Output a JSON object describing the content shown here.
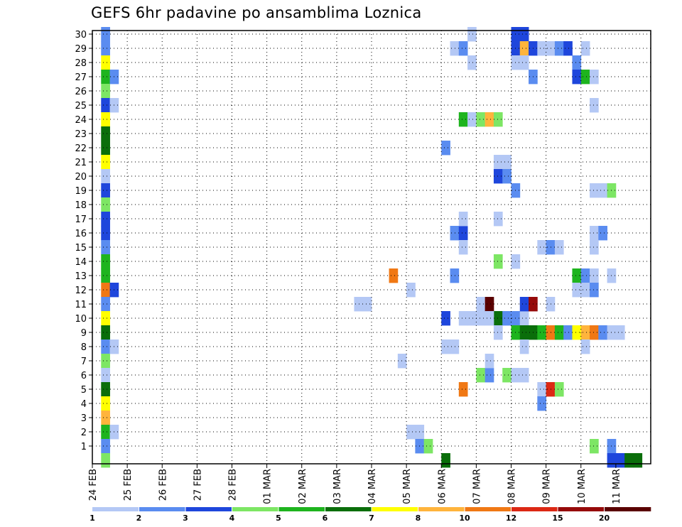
{
  "chart_data": {
    "type": "heatmap",
    "title": "GEFS 6hr padavine po ansamblima Loznica",
    "x_tick_labels": [
      "24 FEB",
      "25 FEB",
      "26 FEB",
      "27 FEB",
      "28 FEB",
      "01 MAR",
      "02 MAR",
      "03 MAR",
      "04 MAR",
      "05 MAR",
      "06 MAR",
      "07 MAR",
      "08 MAR",
      "09 MAR",
      "10 MAR",
      "11 MAR"
    ],
    "y_tick_labels": [
      "1",
      "2",
      "3",
      "4",
      "5",
      "6",
      "7",
      "8",
      "9",
      "10",
      "11",
      "12",
      "13",
      "14",
      "15",
      "16",
      "17",
      "18",
      "19",
      "20",
      "21",
      "22",
      "23",
      "24",
      "25",
      "26",
      "27",
      "28",
      "29",
      "30"
    ],
    "x_range_steps": [
      0,
      64
    ],
    "y_range": [
      0,
      30
    ],
    "steps_per_day": 4,
    "grid": "dotted",
    "colorbar": {
      "labels": [
        "1",
        "2",
        "3",
        "4",
        "5",
        "6",
        "7",
        "8",
        "10",
        "12",
        "15",
        "20"
      ],
      "colors": [
        "#b4c8f5",
        "#5a8cf0",
        "#1e46dc",
        "#7de664",
        "#1eb41e",
        "#0a6e0a",
        "#ffff00",
        "#ffb43c",
        "#f07814",
        "#dc2814",
        "#960a0a",
        "#5a0000"
      ]
    },
    "cells": [
      [
        1,
        30,
        0,
        1
      ],
      [
        1,
        29,
        1,
        1
      ],
      [
        1,
        28,
        0,
        6
      ],
      [
        1,
        27,
        0,
        4
      ],
      [
        1,
        26,
        0,
        3
      ],
      [
        1,
        25,
        0,
        2
      ],
      [
        1,
        24,
        0,
        6
      ],
      [
        1,
        23,
        0,
        5
      ],
      [
        1,
        22,
        0,
        5
      ],
      [
        1,
        21,
        0,
        6
      ],
      [
        1,
        20,
        0,
        0
      ],
      [
        1,
        19,
        0,
        2
      ],
      [
        1,
        18,
        0,
        3
      ],
      [
        1,
        17,
        0,
        2
      ],
      [
        1,
        16,
        0,
        2
      ],
      [
        1,
        15,
        0,
        1
      ],
      [
        1,
        14,
        0,
        4
      ],
      [
        1,
        13,
        0,
        4
      ],
      [
        1,
        12,
        0,
        8
      ],
      [
        1,
        11,
        0,
        1
      ],
      [
        1,
        10,
        0,
        6
      ],
      [
        1,
        9,
        0,
        5
      ],
      [
        1,
        8,
        0,
        1
      ],
      [
        1,
        7,
        0,
        3
      ],
      [
        1,
        6,
        0,
        0
      ],
      [
        1,
        5,
        0,
        5
      ],
      [
        1,
        4,
        0,
        6
      ],
      [
        1,
        3,
        0,
        7
      ],
      [
        1,
        2,
        0,
        4
      ],
      [
        1,
        1,
        0,
        1
      ],
      [
        1,
        0,
        0,
        3
      ],
      [
        2,
        27,
        0,
        1
      ],
      [
        2,
        25,
        0,
        0
      ],
      [
        2,
        12,
        0,
        2
      ],
      [
        2,
        8,
        0,
        0
      ],
      [
        2,
        2,
        0,
        0
      ],
      [
        30,
        11,
        0,
        0
      ],
      [
        31,
        11,
        0,
        0
      ],
      [
        34,
        13,
        0,
        8
      ],
      [
        36,
        12,
        0,
        0
      ],
      [
        35,
        7,
        0,
        0
      ],
      [
        36,
        2,
        0,
        0
      ],
      [
        37,
        2,
        0,
        0
      ],
      [
        37,
        1,
        0,
        1
      ],
      [
        38,
        1,
        0,
        3
      ],
      [
        40,
        0,
        0,
        5
      ],
      [
        40,
        22,
        0,
        1
      ],
      [
        40,
        10,
        0,
        2
      ],
      [
        40,
        8,
        0,
        0
      ],
      [
        41,
        8,
        0,
        0
      ],
      [
        41,
        29,
        0,
        0
      ],
      [
        42,
        29,
        0,
        1
      ],
      [
        42,
        24,
        0,
        4
      ],
      [
        43,
        24,
        0,
        0
      ],
      [
        41,
        16,
        0,
        1
      ],
      [
        42,
        16,
        0,
        2
      ],
      [
        42,
        15,
        0,
        0
      ],
      [
        41,
        13,
        0,
        1
      ],
      [
        42,
        17,
        0,
        0
      ],
      [
        42,
        10,
        0,
        0
      ],
      [
        43,
        10,
        0,
        0
      ],
      [
        44,
        10,
        0,
        0
      ],
      [
        43,
        30,
        0,
        0
      ],
      [
        43,
        28,
        0,
        0
      ],
      [
        44,
        24,
        0,
        3
      ],
      [
        45,
        24,
        0,
        7
      ],
      [
        46,
        24,
        0,
        3
      ],
      [
        44,
        11,
        0,
        0
      ],
      [
        45,
        11,
        0,
        11
      ],
      [
        46,
        10,
        0,
        5
      ],
      [
        44,
        6,
        0,
        3
      ],
      [
        45,
        6,
        0,
        1
      ],
      [
        45,
        7,
        0,
        0
      ],
      [
        42,
        5,
        0,
        8
      ],
      [
        45,
        10,
        0,
        0
      ],
      [
        46,
        21,
        0,
        0
      ],
      [
        47,
        21,
        0,
        0
      ],
      [
        46,
        20,
        0,
        2
      ],
      [
        47,
        20,
        0,
        1
      ],
      [
        46,
        17,
        0,
        0
      ],
      [
        46,
        14,
        0,
        3
      ],
      [
        47,
        10,
        0,
        1
      ],
      [
        46,
        9,
        0,
        0
      ],
      [
        47,
        6,
        0,
        3
      ],
      [
        48,
        6,
        0,
        0
      ],
      [
        48,
        19,
        0,
        1
      ],
      [
        48,
        14,
        0,
        0
      ],
      [
        48,
        30,
        0,
        2
      ],
      [
        49,
        30,
        0,
        2
      ],
      [
        48,
        29,
        0,
        2
      ],
      [
        49,
        29,
        0,
        7
      ],
      [
        50,
        29,
        0,
        2
      ],
      [
        51,
        29,
        0,
        0
      ],
      [
        52,
        29,
        0,
        0
      ],
      [
        53,
        29,
        0,
        1
      ],
      [
        54,
        29,
        0,
        2
      ],
      [
        48,
        28,
        0,
        0
      ],
      [
        49,
        28,
        0,
        0
      ],
      [
        50,
        27,
        0,
        1
      ],
      [
        48,
        10,
        0,
        1
      ],
      [
        49,
        10,
        0,
        0
      ],
      [
        49,
        11,
        0,
        2
      ],
      [
        50,
        11,
        0,
        10
      ],
      [
        48,
        9,
        0,
        4
      ],
      [
        49,
        9,
        0,
        5
      ],
      [
        50,
        9,
        0,
        5
      ],
      [
        51,
        9,
        0,
        4
      ],
      [
        52,
        9,
        0,
        8
      ],
      [
        53,
        9,
        0,
        4
      ],
      [
        54,
        9,
        0,
        1
      ],
      [
        55,
        9,
        0,
        6
      ],
      [
        56,
        9,
        0,
        7
      ],
      [
        57,
        9,
        0,
        8
      ],
      [
        58,
        9,
        0,
        1
      ],
      [
        59,
        9,
        0,
        0
      ],
      [
        60,
        9,
        0,
        0
      ],
      [
        49,
        8,
        0,
        0
      ],
      [
        49,
        6,
        0,
        0
      ],
      [
        51,
        5,
        0,
        0
      ],
      [
        52,
        5,
        0,
        9
      ],
      [
        53,
        5,
        0,
        3
      ],
      [
        51,
        4,
        0,
        1
      ],
      [
        51,
        15,
        0,
        0
      ],
      [
        52,
        15,
        0,
        1
      ],
      [
        53,
        15,
        0,
        0
      ],
      [
        52,
        11,
        0,
        0
      ],
      [
        55,
        28,
        0,
        1
      ],
      [
        55,
        27,
        0,
        2
      ],
      [
        56,
        27,
        0,
        4
      ],
      [
        57,
        27,
        0,
        0
      ],
      [
        56,
        29,
        0,
        0
      ],
      [
        57,
        25,
        0,
        0
      ],
      [
        55,
        13,
        0,
        4
      ],
      [
        56,
        13,
        0,
        1
      ],
      [
        57,
        13,
        0,
        0
      ],
      [
        59,
        13,
        0,
        0
      ],
      [
        55,
        12,
        0,
        0
      ],
      [
        56,
        12,
        0,
        0
      ],
      [
        57,
        12,
        0,
        1
      ],
      [
        57,
        16,
        0,
        0
      ],
      [
        58,
        16,
        0,
        1
      ],
      [
        57,
        15,
        0,
        0
      ],
      [
        57,
        19,
        0,
        0
      ],
      [
        58,
        19,
        0,
        0
      ],
      [
        59,
        19,
        0,
        3
      ],
      [
        56,
        8,
        0,
        0
      ],
      [
        57,
        1,
        0,
        3
      ],
      [
        59,
        1,
        0,
        1
      ],
      [
        59,
        0,
        0,
        2
      ],
      [
        60,
        0,
        0,
        2
      ],
      [
        61,
        0,
        0,
        5
      ],
      [
        62,
        0,
        0,
        5
      ]
    ]
  }
}
